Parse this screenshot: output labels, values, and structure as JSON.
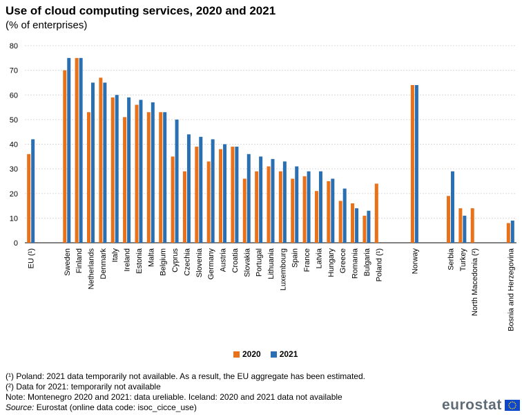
{
  "title": "Use of cloud computing services, 2020 and 2021",
  "subtitle": "(% of enterprises)",
  "colors": {
    "2020": "#e8711a",
    "2021": "#2b6fb3",
    "grid": "#d9d9d9",
    "flag": "#0e47cb",
    "flag_stars": "#ffdd00"
  },
  "legend": {
    "label_2020": "2020",
    "label_2021": "2021"
  },
  "notes": {
    "note1": "(¹) Poland: 2021 data temporarily not available. As a result, the EU aggregate has been estimated.",
    "note2": "(²) Data for 2021: temporarily not available",
    "note3": "Note: Montenegro 2020 and 2021: data ureliable. Iceland: 2020 and 2021 data not available",
    "source_label": "Source:",
    "source_text": " Eurostat (online data code: isoc_cicce_use)"
  },
  "logo": {
    "text": "eurostat",
    "icon": "eu-flag-icon"
  },
  "chart_data": {
    "type": "bar",
    "ylim": [
      0,
      80
    ],
    "yticks": [
      0,
      10,
      20,
      30,
      40,
      50,
      60,
      70,
      80
    ],
    "grid": true,
    "legend_position": "bottom-center",
    "categories": [
      "EU (¹)",
      "Sweden",
      "Finland",
      "Netherlands",
      "Denmark",
      "Italy",
      "Ireland",
      "Estonia",
      "Malta",
      "Belgium",
      "Cyprus",
      "Czechia",
      "Slovenia",
      "Germany",
      "Austria",
      "Croatia",
      "Slovakia",
      "Portugal",
      "Lithuania",
      "Luxembourg",
      "Spain",
      "France",
      "Latvia",
      "Hungary",
      "Greece",
      "Romania",
      "Bulgaria",
      "Poland (¹)",
      "Norway",
      "Serbia",
      "Turkey",
      "North Macedonia (²)",
      "Bosnia and Herzegovina"
    ],
    "groups": [
      [
        0
      ],
      [
        1,
        2,
        3,
        4,
        5,
        6,
        7,
        8,
        9,
        10,
        11,
        12,
        13,
        14,
        15,
        16,
        17,
        18,
        19,
        20,
        21,
        22,
        23,
        24,
        25,
        26,
        27
      ],
      [
        28
      ],
      [
        29,
        30,
        31
      ],
      [
        32
      ]
    ],
    "series": [
      {
        "name": "2020",
        "values": [
          36,
          70,
          75,
          53,
          67,
          59,
          51,
          56,
          53,
          53,
          35,
          29,
          39,
          33,
          38,
          39,
          26,
          29,
          31,
          29,
          26,
          27,
          21,
          25,
          17,
          16,
          11,
          24,
          64,
          19,
          14,
          14,
          8
        ]
      },
      {
        "name": "2021",
        "values": [
          42,
          75,
          75,
          65,
          65,
          60,
          59,
          58,
          57,
          53,
          50,
          44,
          43,
          42,
          40,
          39,
          36,
          35,
          34,
          33,
          31,
          29,
          29,
          26,
          22,
          14,
          13,
          null,
          64,
          29,
          11,
          null,
          9
        ]
      }
    ]
  }
}
